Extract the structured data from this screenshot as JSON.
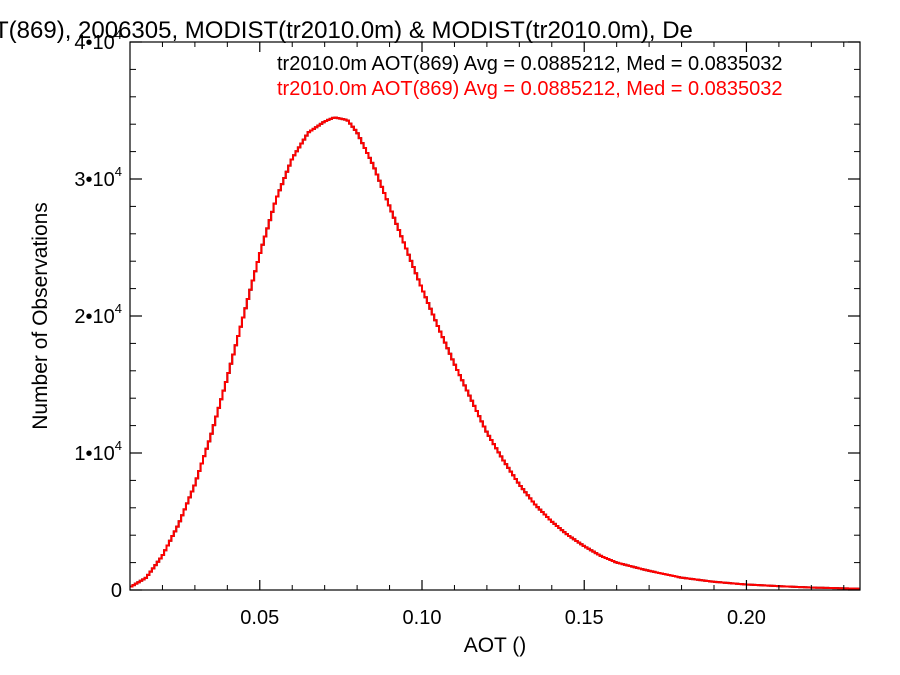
{
  "chart_data": {
    "type": "line",
    "title": "T(869), 2006305, MODIST(tr2010.0m) & MODIST(tr2010.0m), De",
    "xlabel": "AOT ()",
    "ylabel": "Number of Observations",
    "xlim": [
      0.01,
      0.235
    ],
    "ylim": [
      0,
      40000
    ],
    "x_ticks": [
      {
        "value": 0.05,
        "label": "0.05"
      },
      {
        "value": 0.1,
        "label": "0.10"
      },
      {
        "value": 0.15,
        "label": "0.15"
      },
      {
        "value": 0.2,
        "label": "0.20"
      }
    ],
    "y_ticks": [
      {
        "value": 0,
        "label": "0",
        "mantissa": "",
        "exponent": ""
      },
      {
        "value": 10000,
        "label": "",
        "mantissa": "1•10",
        "exponent": "4"
      },
      {
        "value": 20000,
        "label": "",
        "mantissa": "2•10",
        "exponent": "4"
      },
      {
        "value": 30000,
        "label": "",
        "mantissa": "3•10",
        "exponent": "4"
      },
      {
        "value": 40000,
        "label": "",
        "mantissa": "4•10",
        "exponent": "4"
      }
    ],
    "legend": [
      {
        "text": "tr2010.0m AOT(869) Avg = 0.0885212, Med = 0.0835032",
        "color": "#000000"
      },
      {
        "text": "tr2010.0m AOT(869) Avg = 0.0885212, Med = 0.0835032",
        "color": "#ff0000"
      }
    ],
    "legend_placement": "top-right",
    "grid": false,
    "series": [
      {
        "color": "#ff0000",
        "x": [
          0.01,
          0.015,
          0.02,
          0.025,
          0.03,
          0.035,
          0.04,
          0.045,
          0.05,
          0.055,
          0.06,
          0.065,
          0.07,
          0.073,
          0.075,
          0.077,
          0.08,
          0.085,
          0.09,
          0.095,
          0.1,
          0.105,
          0.11,
          0.115,
          0.12,
          0.125,
          0.13,
          0.135,
          0.14,
          0.145,
          0.15,
          0.155,
          0.16,
          0.17,
          0.18,
          0.19,
          0.2,
          0.21,
          0.22,
          0.235
        ],
        "values": [
          200,
          900,
          2500,
          4800,
          7700,
          11300,
          15500,
          20000,
          24500,
          28500,
          31500,
          33400,
          34200,
          34500,
          34400,
          34300,
          33400,
          31000,
          28000,
          25000,
          22000,
          19200,
          16500,
          14000,
          11500,
          9500,
          7700,
          6200,
          5000,
          4000,
          3200,
          2500,
          2000,
          1400,
          900,
          600,
          400,
          280,
          180,
          90
        ]
      },
      {
        "color": "#000000",
        "x": [
          0.01,
          0.015,
          0.02,
          0.025,
          0.03,
          0.035,
          0.04,
          0.045,
          0.05,
          0.055,
          0.06,
          0.065,
          0.07,
          0.073,
          0.075,
          0.077,
          0.08,
          0.085,
          0.09,
          0.095,
          0.1,
          0.105,
          0.11,
          0.115,
          0.12,
          0.125,
          0.13,
          0.135,
          0.14,
          0.145,
          0.15,
          0.155,
          0.16,
          0.17,
          0.18,
          0.19,
          0.2,
          0.21,
          0.22,
          0.235
        ],
        "values": [
          200,
          900,
          2500,
          4800,
          7700,
          11300,
          15500,
          20000,
          24500,
          28500,
          31500,
          33400,
          34200,
          34500,
          34400,
          34300,
          33400,
          31000,
          28000,
          25000,
          22000,
          19200,
          16500,
          14000,
          11500,
          9500,
          7700,
          6200,
          5000,
          4000,
          3200,
          2500,
          2000,
          1400,
          900,
          600,
          400,
          280,
          180,
          90
        ]
      }
    ]
  }
}
